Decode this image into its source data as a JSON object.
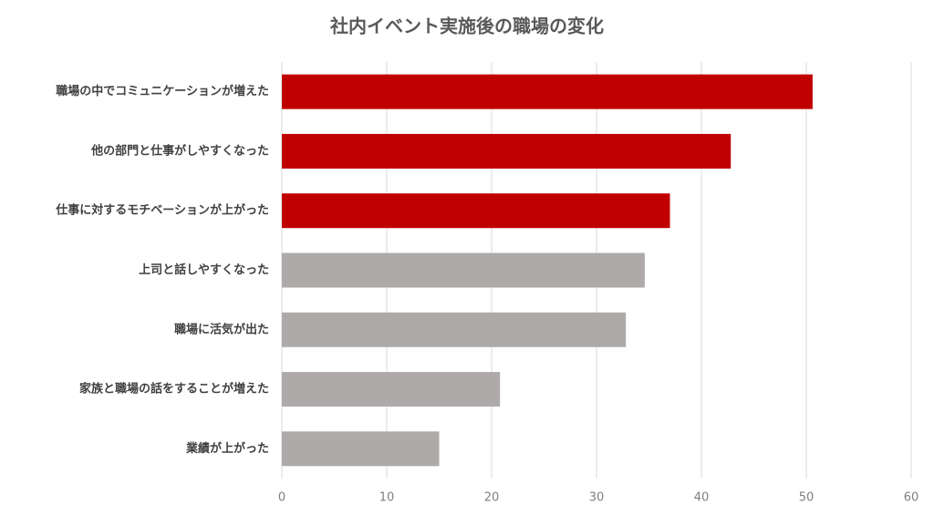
{
  "chart_data": {
    "type": "barh",
    "title": "社内イベント実施後の職場の変化",
    "categories": [
      "職場の中でコミュニケーションが増えた",
      "他の部門と仕事がしやすくなった",
      "仕事に対するモチベーションが上がった",
      "上司と話しやすくなった",
      "職場に活気が出た",
      "家族と職場の話をすることが増えた",
      "業績が上がった"
    ],
    "values": [
      50.6,
      42.8,
      37.0,
      34.6,
      32.8,
      20.8,
      15.0
    ],
    "colors": [
      "#c00000",
      "#c00000",
      "#c00000",
      "#aeaaaa",
      "#aeaaaa",
      "#aeaaaa",
      "#aeaaaa"
    ],
    "xlim": [
      0,
      60
    ],
    "xticks": [
      0,
      10,
      20,
      30,
      40,
      50,
      60
    ],
    "grid": true
  }
}
